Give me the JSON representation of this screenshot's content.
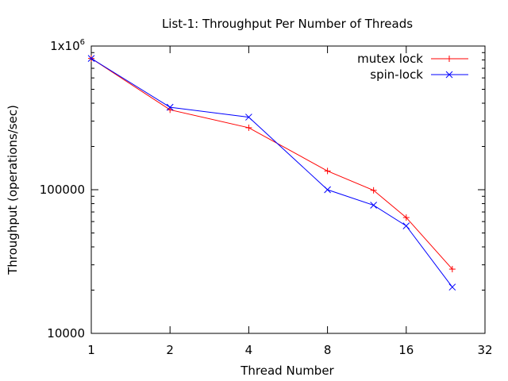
{
  "chart_data": {
    "type": "line",
    "title": "List-1: Throughput Per Number of Threads",
    "xlabel": "Thread Number",
    "ylabel": "Throughput (operations/sec)",
    "x_scale": "log2",
    "y_scale": "log10",
    "xlim": [
      1,
      32
    ],
    "ylim": [
      10000,
      1000000
    ],
    "x_ticks": [
      {
        "value": 1,
        "label": "1"
      },
      {
        "value": 2,
        "label": "2"
      },
      {
        "value": 4,
        "label": "4"
      },
      {
        "value": 8,
        "label": "8"
      },
      {
        "value": 16,
        "label": "16"
      },
      {
        "value": 32,
        "label": "32"
      }
    ],
    "y_ticks": [
      {
        "value": 10000,
        "label": "10000"
      },
      {
        "value": 100000,
        "label": "100000"
      },
      {
        "value": 1000000,
        "label": "1x10",
        "label_sup": "6"
      }
    ],
    "grid": false,
    "legend_position": "top-right",
    "series": [
      {
        "name": "mutex lock",
        "color": "#ff0000",
        "marker": "plus",
        "x": [
          1,
          2,
          4,
          8,
          12,
          16,
          24
        ],
        "y": [
          820000,
          360000,
          270000,
          135000,
          99000,
          64000,
          28000
        ]
      },
      {
        "name": "spin-lock",
        "color": "#0000ff",
        "marker": "cross",
        "x": [
          1,
          2,
          4,
          8,
          12,
          16,
          24
        ],
        "y": [
          820000,
          375000,
          320000,
          100000,
          78000,
          56000,
          21000
        ]
      }
    ]
  }
}
